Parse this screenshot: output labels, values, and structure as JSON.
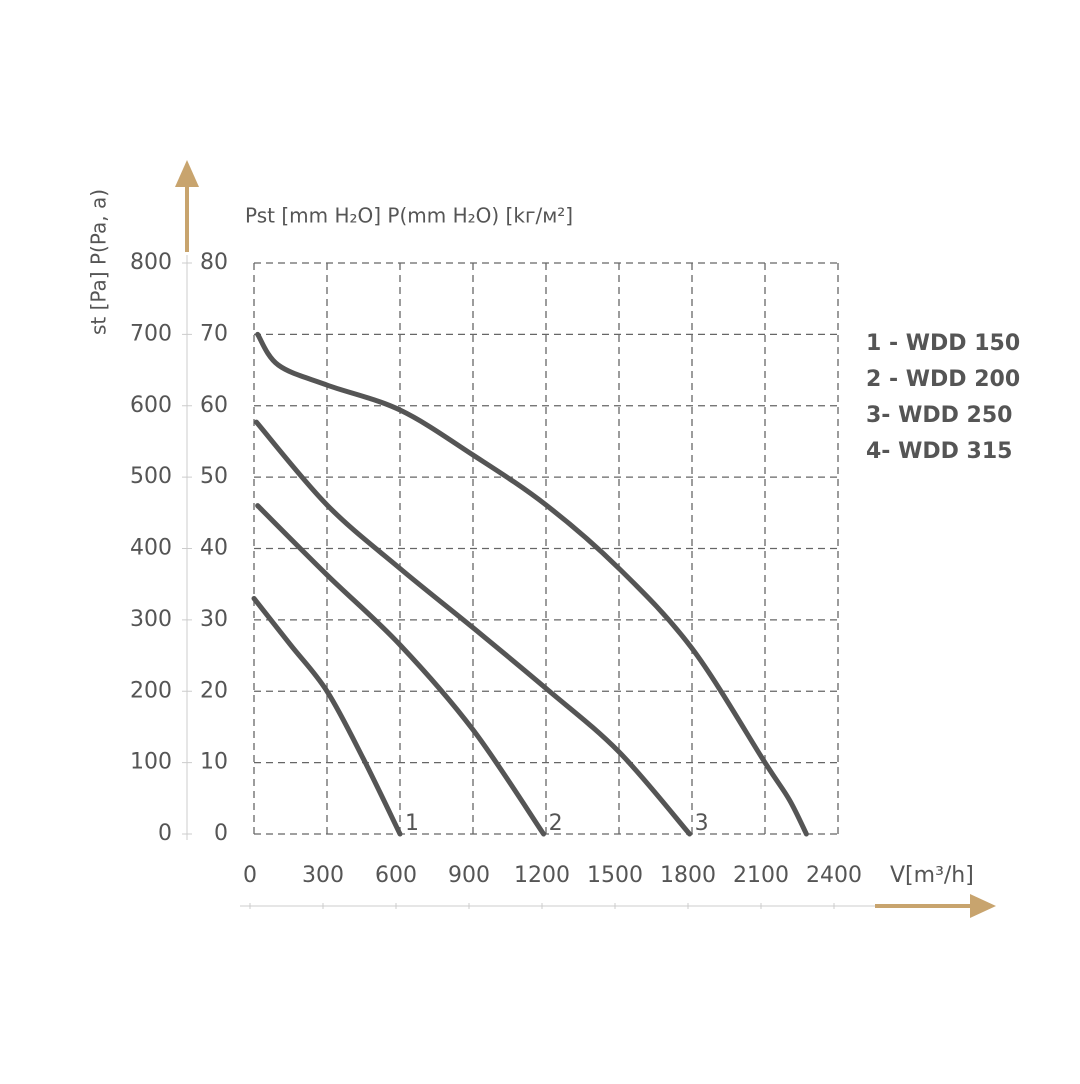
{
  "chart_data": {
    "type": "line",
    "ylabel": "st [Pa] P(Pa,  a)",
    "y2label": "Pst [mm H₂O] P(mm H₂O) [kг/м²]",
    "xlabel": "V[m³/h]",
    "xlim": [
      0,
      2400
    ],
    "xticks": [
      0,
      300,
      600,
      900,
      1200,
      1500,
      1800,
      2100,
      2400
    ],
    "ylim": [
      0,
      800
    ],
    "yticks": [
      0,
      100,
      200,
      300,
      400,
      500,
      600,
      700,
      800
    ],
    "y2lim": [
      0,
      80
    ],
    "y2ticks": [
      0,
      10,
      20,
      30,
      40,
      50,
      60,
      70,
      80
    ],
    "grid": true,
    "legend": "right",
    "series": [
      {
        "name": "1 - WDD 150",
        "curve_label": "1",
        "color": "#555555",
        "x": [
          0,
          150,
          300,
          450,
          600
        ],
        "values": [
          330,
          265,
          200,
          105,
          0
        ]
      },
      {
        "name": "2 - WDD 200",
        "curve_label": "2",
        "color": "#555555",
        "x": [
          15,
          300,
          600,
          900,
          1190
        ],
        "values": [
          460,
          363,
          265,
          146,
          0
        ]
      },
      {
        "name": "3- WDD 250",
        "curve_label": "3",
        "color": "#555555",
        "x": [
          10,
          300,
          600,
          900,
          1200,
          1500,
          1790
        ],
        "values": [
          577,
          461,
          372,
          289,
          204,
          115,
          0
        ]
      },
      {
        "name": "4- WDD 315",
        "color": "#555555",
        "x": [
          15,
          100,
          300,
          600,
          900,
          1200,
          1500,
          1800,
          2100,
          2200,
          2270
        ],
        "values": [
          700,
          657,
          629,
          594,
          531,
          461,
          372,
          260,
          100,
          48,
          0
        ]
      }
    ]
  }
}
